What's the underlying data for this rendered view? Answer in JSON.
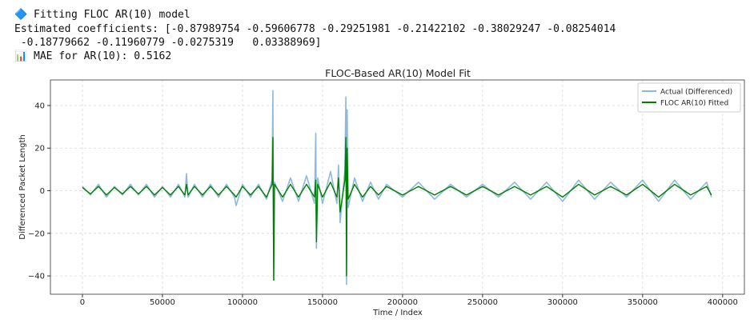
{
  "output_lines": [
    "🔷 Fitting FLOC AR(10) model",
    "Estimated coefficients: [-0.87989754 -0.59606778 -0.29251981 -0.21422102 -0.38029247 -0.08254014",
    " -0.18779662 -0.11960779 -0.0275319   0.03388969]",
    "📊 MAE for AR(10): 0.5162"
  ],
  "chart_data": {
    "type": "line",
    "title": "FLOC-Based AR(10) Model Fit",
    "x_label": "Time / Index",
    "y_label": "Differenced Packet Length",
    "x": [
      0,
      5000,
      10000,
      15000,
      20000,
      25000,
      30000,
      35000,
      40000,
      45000,
      50000,
      55000,
      60000,
      64000,
      65000,
      66000,
      70000,
      75000,
      80000,
      85000,
      90000,
      95000,
      96000,
      100000,
      105000,
      110000,
      115000,
      118500,
      119000,
      119500,
      120000,
      125000,
      130000,
      135000,
      140000,
      145000,
      145800,
      146200,
      147000,
      150000,
      155000,
      159000,
      160000,
      161000,
      164000,
      164600,
      165000,
      165400,
      166000,
      170000,
      175000,
      180000,
      185000,
      190000,
      200000,
      210000,
      220000,
      230000,
      240000,
      250000,
      260000,
      270000,
      280000,
      290000,
      300000,
      310000,
      320000,
      330000,
      340000,
      350000,
      360000,
      370000,
      380000,
      390000,
      393000
    ],
    "series": [
      {
        "name": "Actual (Differenced)",
        "color": "#8fb9dc",
        "values": [
          2,
          -2,
          3,
          -3,
          2,
          -2,
          3,
          -2,
          3,
          -3,
          2,
          -3,
          3,
          -3,
          8,
          -3,
          3,
          -3,
          3,
          -3,
          3,
          -3,
          -7,
          3,
          -3,
          3,
          -4,
          5,
          47,
          -42,
          4,
          -5,
          6,
          -5,
          7,
          -6,
          27,
          -27,
          6,
          -6,
          9,
          -6,
          12,
          -15,
          10,
          44,
          -44,
          38,
          -8,
          6,
          -5,
          4,
          -4,
          3,
          -3,
          4,
          -4,
          3,
          -3,
          3,
          -3,
          4,
          -4,
          4,
          -5,
          5,
          -4,
          4,
          -3,
          5,
          -5,
          5,
          -4,
          4,
          -3
        ]
      },
      {
        "name": "FLOC AR(10) Fitted",
        "color": "#008000",
        "values": [
          1.5,
          -1.5,
          2,
          -2,
          1.5,
          -1.5,
          2,
          -1.5,
          2,
          -2,
          1.5,
          -2,
          2,
          -2,
          3,
          -2,
          2,
          -2,
          2,
          -2,
          2,
          -2,
          -3,
          2,
          -2,
          2,
          -3,
          3,
          25,
          -42,
          3,
          -3,
          3,
          -3,
          3,
          -3,
          5,
          -24,
          3,
          -3,
          4,
          -3,
          6,
          -10,
          5,
          25,
          -40,
          20,
          -4,
          3,
          -3,
          2,
          -2,
          2,
          -2,
          2,
          -2,
          2,
          -2,
          2,
          -2,
          2,
          -2,
          2,
          -3,
          3,
          -2,
          2,
          -2,
          3,
          -3,
          3,
          -2,
          2,
          -2
        ]
      }
    ],
    "xlim": [
      -20000,
      413600
    ],
    "ylim": [
      -48.6,
      52
    ],
    "xticks": [
      0,
      50000,
      100000,
      150000,
      200000,
      250000,
      300000,
      350000,
      400000
    ],
    "yticks": [
      {
        "value": -40,
        "label": "−40"
      },
      {
        "value": -20,
        "label": "−20"
      },
      0,
      20,
      40
    ],
    "grid": true,
    "legend": "upper right"
  }
}
